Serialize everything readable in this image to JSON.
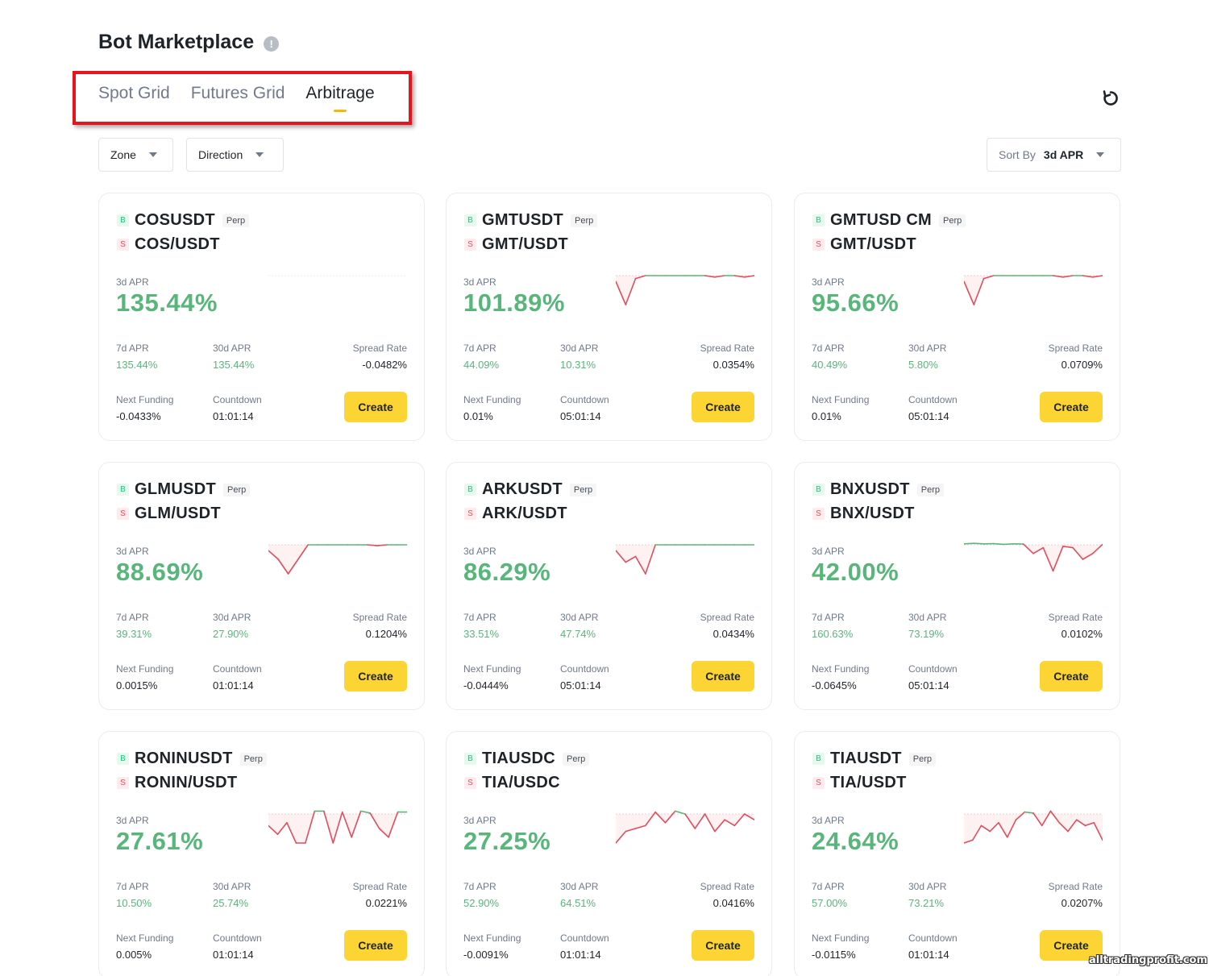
{
  "header": {
    "title": "Bot Marketplace",
    "info_icon": "info-icon"
  },
  "tabs": [
    {
      "label": "Spot Grid",
      "active": false
    },
    {
      "label": "Futures Grid",
      "active": false
    },
    {
      "label": "Arbitrage",
      "active": true
    }
  ],
  "filters": {
    "zone_label": "Zone",
    "direction_label": "Direction",
    "sort_label": "Sort By",
    "sort_value": "3d APR"
  },
  "labels": {
    "buy_badge": "B",
    "sell_badge": "S",
    "perp": "Perp",
    "apr_3d": "3d APR",
    "apr_7d": "7d APR",
    "apr_30d": "30d APR",
    "spread_rate": "Spread Rate",
    "next_funding": "Next Funding",
    "countdown": "Countdown",
    "create": "Create"
  },
  "cards": [
    {
      "futures": "COSUSDT",
      "spot": "COS/USDT",
      "apr_3d": "135.44%",
      "apr_7d": "135.44%",
      "apr_30d": "135.44%",
      "spread_rate": "-0.0482%",
      "next_funding": "-0.0433%",
      "countdown": "01:01:14",
      "sparkline": []
    },
    {
      "futures": "GMTUSDT",
      "spot": "GMT/USDT",
      "apr_3d": "101.89%",
      "apr_7d": "44.09%",
      "apr_30d": "10.31%",
      "spread_rate": "0.0354%",
      "next_funding": "0.01%",
      "countdown": "05:01:14",
      "sparkline": [
        -0.2,
        -1,
        -0.1,
        0,
        0,
        0,
        0,
        0,
        0,
        0,
        -0.05,
        0,
        0,
        -0.05,
        0
      ]
    },
    {
      "futures": "GMTUSD CM",
      "spot": "GMT/USDT",
      "apr_3d": "95.66%",
      "apr_7d": "40.49%",
      "apr_30d": "5.80%",
      "spread_rate": "0.0709%",
      "next_funding": "0.01%",
      "countdown": "05:01:14",
      "sparkline": [
        -0.2,
        -1,
        -0.1,
        0,
        0,
        0,
        0,
        0,
        0,
        0,
        -0.05,
        0,
        0,
        -0.05,
        0
      ]
    },
    {
      "futures": "GLMUSDT",
      "spot": "GLM/USDT",
      "apr_3d": "88.69%",
      "apr_7d": "39.31%",
      "apr_30d": "27.90%",
      "spread_rate": "0.1204%",
      "next_funding": "0.0015%",
      "countdown": "01:01:14",
      "sparkline": [
        -0.2,
        -0.5,
        -1,
        -0.5,
        0,
        0,
        0,
        0,
        0,
        0,
        0,
        -0.03,
        0,
        0,
        0
      ]
    },
    {
      "futures": "ARKUSDT",
      "spot": "ARK/USDT",
      "apr_3d": "86.29%",
      "apr_7d": "33.51%",
      "apr_30d": "47.74%",
      "spread_rate": "0.0434%",
      "next_funding": "-0.0444%",
      "countdown": "05:01:14",
      "sparkline": [
        -0.2,
        -0.6,
        -0.4,
        -1,
        0,
        0,
        0,
        0,
        0,
        0,
        0,
        0,
        0,
        0,
        0
      ]
    },
    {
      "futures": "BNXUSDT",
      "spot": "BNX/USDT",
      "apr_3d": "42.00%",
      "apr_7d": "160.63%",
      "apr_30d": "73.19%",
      "spread_rate": "0.0102%",
      "next_funding": "-0.0645%",
      "countdown": "05:01:14",
      "sparkline": [
        0.1,
        0.15,
        0.1,
        0.12,
        0.05,
        0.1,
        0.08,
        -0.3,
        -0.1,
        -0.9,
        -0.05,
        -0.1,
        -0.5,
        -0.3,
        0.05
      ]
    },
    {
      "futures": "RONINUSDT",
      "spot": "RONIN/USDT",
      "apr_3d": "27.61%",
      "apr_7d": "10.50%",
      "apr_30d": "25.74%",
      "spread_rate": "0.0221%",
      "next_funding": "0.005%",
      "countdown": "01:01:14",
      "sparkline": [
        -0.4,
        -0.7,
        -0.3,
        -1,
        -1,
        0.3,
        0.3,
        -1,
        0.2,
        -0.8,
        0.3,
        0.1,
        -0.5,
        -0.8,
        0.2,
        0.2
      ]
    },
    {
      "futures": "TIAUSDC",
      "spot": "TIA/USDC",
      "apr_3d": "27.25%",
      "apr_7d": "52.90%",
      "apr_30d": "64.51%",
      "spread_rate": "0.0416%",
      "next_funding": "-0.0091%",
      "countdown": "01:01:14",
      "sparkline": [
        -1,
        -0.6,
        -0.5,
        -0.4,
        0.2,
        -0.3,
        0.3,
        0,
        -0.5,
        0,
        -0.6,
        -0.2,
        -0.4,
        0,
        -0.2
      ]
    },
    {
      "futures": "TIAUSDT",
      "spot": "TIA/USDT",
      "apr_3d": "24.64%",
      "apr_7d": "57.00%",
      "apr_30d": "73.21%",
      "spread_rate": "0.0207%",
      "next_funding": "-0.0115%",
      "countdown": "01:01:14",
      "sparkline": [
        -1,
        -0.9,
        -0.4,
        -0.6,
        -0.3,
        -0.8,
        -0.2,
        0.2,
        0.1,
        -0.4,
        0.3,
        -0.3,
        -0.6,
        -0.2,
        -0.4,
        -0.3,
        -0.9
      ]
    }
  ],
  "colors": {
    "positive": "#58b67a",
    "negative": "#e24c5c",
    "accent": "#fcd535",
    "tab_indicator": "#f0b90b"
  },
  "watermark": "alltradingprofit.com"
}
